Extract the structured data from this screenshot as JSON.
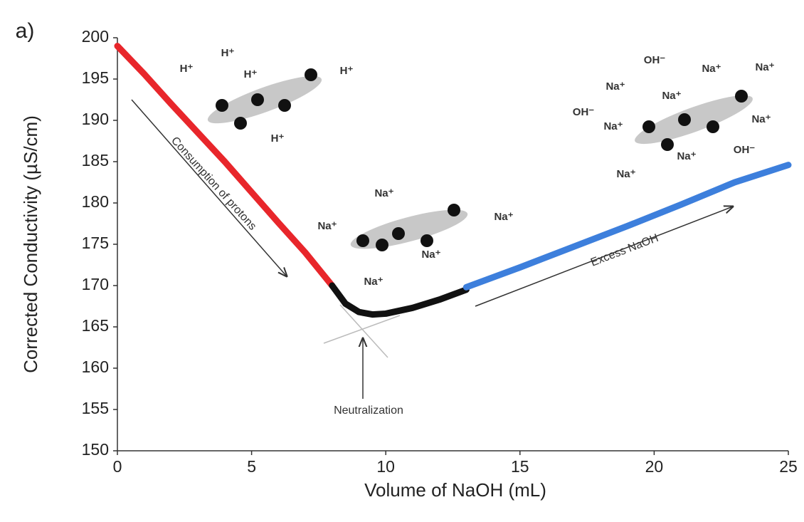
{
  "chart_data": {
    "type": "line",
    "panel_label": "a)",
    "x_label": "Volume of NaOH (mL)",
    "y_label": "Corrected Conductivity (µS/cm)",
    "xlim": [
      0,
      25
    ],
    "xticks": [
      0,
      5,
      10,
      15,
      20,
      25
    ],
    "ylim": [
      150,
      200
    ],
    "yticks": [
      150,
      155,
      160,
      165,
      170,
      175,
      180,
      185,
      190,
      195,
      200
    ],
    "grid": false,
    "series": [
      {
        "color": "#e8262b",
        "x": [
          0,
          1,
          2,
          3,
          4,
          5,
          6,
          7,
          8
        ],
        "values": [
          199,
          195.6,
          192,
          188.5,
          185,
          181.3,
          177.6,
          174,
          170
        ]
      },
      {
        "color": "#111111",
        "x": [
          8,
          8.5,
          9,
          9.5,
          10,
          11,
          12,
          13
        ],
        "values": [
          170,
          167.8,
          166.8,
          166.5,
          166.6,
          167.3,
          168.3,
          169.5
        ]
      },
      {
        "color": "#3d7fdc",
        "x": [
          13,
          15,
          17,
          19,
          21,
          23,
          25
        ],
        "values": [
          169.8,
          172.2,
          174.7,
          177.2,
          179.8,
          182.5,
          184.6
        ]
      }
    ],
    "annotations": [
      "Consumption of protons",
      "Neutralization",
      "Excess NaOH"
    ],
    "ion_labels": [
      "H⁺",
      "H⁺",
      "H⁺",
      "H⁺",
      "H⁺",
      "Na⁺",
      "Na⁺",
      "Na⁺",
      "Na⁺",
      "Na⁺",
      "OH⁻",
      "Na⁺",
      "Na⁺",
      "Na⁺",
      "Na⁺",
      "OH⁻",
      "Na⁺",
      "Na⁺",
      "Na⁺",
      "OH⁻",
      "Na⁺"
    ]
  }
}
